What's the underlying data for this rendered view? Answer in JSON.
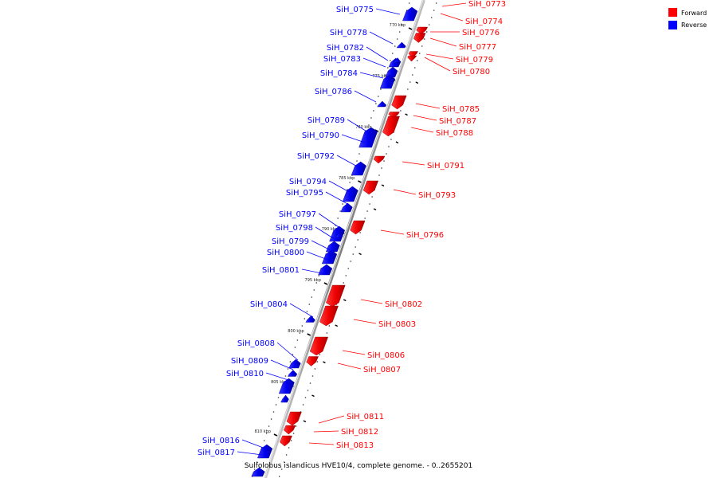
{
  "legend": [
    {
      "label": "Forward",
      "color": "#ff0000"
    },
    {
      "label": "Reverse",
      "color": "#0000ff"
    }
  ],
  "footer": "Sulfolobus islandicus HVE10/4, complete genome. - 0..2655201",
  "scale_labels": [
    "770 kbp",
    "775 kbp",
    "780 kbp",
    "785 kbp",
    "790 kbp",
    "795 kbp",
    "800 kbp",
    "805 kbp",
    "810 kbp"
  ],
  "forward_genes": [
    "SiH_0773",
    "SiH_0774",
    "SiH_0776",
    "SiH_0777",
    "SiH_0779",
    "SiH_0780",
    "SiH_0785",
    "SiH_0787",
    "SiH_0788",
    "SiH_0791",
    "SiH_0793",
    "SiH_0796",
    "SiH_0802",
    "SiH_0803",
    "SiH_0806",
    "SiH_0807",
    "SiH_0811",
    "SiH_0812",
    "SiH_0813"
  ],
  "reverse_genes": [
    "SiH_0775",
    "SiH_0778",
    "SiH_0782",
    "SiH_0783",
    "SiH_0784",
    "SiH_0786",
    "SiH_0789",
    "SiH_0790",
    "SiH_0792",
    "SiH_0794",
    "SiH_0795",
    "SiH_0797",
    "SiH_0798",
    "SiH_0799",
    "SiH_0800",
    "SiH_0801",
    "SiH_0804",
    "SiH_0808",
    "SiH_0809",
    "SiH_0810",
    "SiH_0816",
    "SiH_0817"
  ],
  "colors": {
    "forward": "#ff0000",
    "reverse": "#0000ff",
    "backbone": "#8c8c8c",
    "tick": "#000000"
  }
}
